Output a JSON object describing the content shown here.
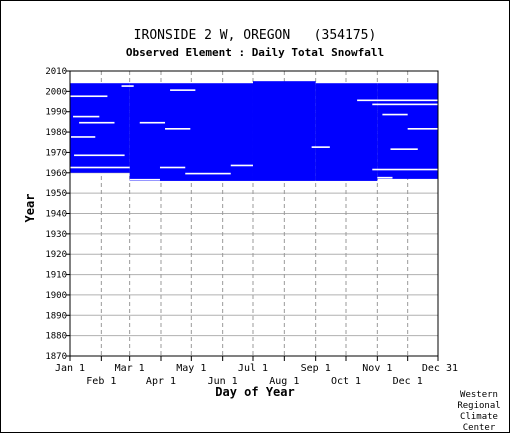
{
  "chart_data": {
    "type": "heatmap",
    "title": "IRONSIDE 2 W, OREGON   (354175)",
    "subtitle": "Observed Element : Daily Total Snowfall",
    "xlabel": "Day of Year",
    "ylabel": "Year",
    "ylim": [
      1870,
      2010
    ],
    "yticks": [
      1870,
      1880,
      1890,
      1900,
      1910,
      1920,
      1930,
      1940,
      1950,
      1960,
      1970,
      1980,
      1990,
      2000,
      2010
    ],
    "xlim": [
      1,
      365
    ],
    "xticks_top": [
      {
        "day": 1,
        "label": "Jan 1"
      },
      {
        "day": 60,
        "label": "Mar 1"
      },
      {
        "day": 121,
        "label": "May 1"
      },
      {
        "day": 182,
        "label": "Jul 1"
      },
      {
        "day": 244,
        "label": "Sep 1"
      },
      {
        "day": 305,
        "label": "Nov 1"
      },
      {
        "day": 365,
        "label": "Dec 31"
      }
    ],
    "xticks_bottom": [
      {
        "day": 32,
        "label": "Feb 1"
      },
      {
        "day": 91,
        "label": "Apr 1"
      },
      {
        "day": 152,
        "label": "Jun 1"
      },
      {
        "day": 213,
        "label": "Aug 1"
      },
      {
        "day": 274,
        "label": "Oct 1"
      },
      {
        "day": 335,
        "label": "Dec 1"
      }
    ],
    "grid": true,
    "data_color": "#0000ff",
    "coverage": [
      {
        "day_start": 1,
        "day_end": 60,
        "year_start": 1960,
        "year_end": 2003
      },
      {
        "day_start": 60,
        "day_end": 182,
        "year_start": 1956,
        "year_end": 2003
      },
      {
        "day_start": 182,
        "day_end": 244,
        "year_start": 1956,
        "year_end": 2004
      },
      {
        "day_start": 244,
        "day_end": 305,
        "year_start": 1956,
        "year_end": 2003
      },
      {
        "day_start": 305,
        "day_end": 365,
        "year_start": 1957,
        "year_end": 2003
      }
    ],
    "gaps": [
      {
        "day_start": 1,
        "day_end": 38,
        "year": 1997
      },
      {
        "day_start": 4,
        "day_end": 30,
        "year": 1987
      },
      {
        "day_start": 10,
        "day_end": 45,
        "year": 1984
      },
      {
        "day_start": 2,
        "day_end": 26,
        "year": 1977
      },
      {
        "day_start": 1,
        "day_end": 60,
        "year": 1962
      },
      {
        "day_start": 5,
        "day_end": 55,
        "year": 1968
      },
      {
        "day_start": 70,
        "day_end": 95,
        "year": 1984
      },
      {
        "day_start": 100,
        "day_end": 125,
        "year": 2000
      },
      {
        "day_start": 95,
        "day_end": 120,
        "year": 1981
      },
      {
        "day_start": 90,
        "day_end": 115,
        "year": 1962
      },
      {
        "day_start": 115,
        "day_end": 160,
        "year": 1959
      },
      {
        "day_start": 160,
        "day_end": 182,
        "year": 1963
      },
      {
        "day_start": 285,
        "day_end": 365,
        "year": 1995
      },
      {
        "day_start": 300,
        "day_end": 365,
        "year": 1993
      },
      {
        "day_start": 310,
        "day_end": 335,
        "year": 1988
      },
      {
        "day_start": 335,
        "day_end": 365,
        "year": 1981
      },
      {
        "day_start": 318,
        "day_end": 345,
        "year": 1971
      },
      {
        "day_start": 300,
        "day_end": 365,
        "year": 1961
      },
      {
        "day_start": 305,
        "day_end": 320,
        "year": 1957
      },
      {
        "day_start": 52,
        "day_end": 64,
        "year": 2002
      },
      {
        "day_start": 60,
        "day_end": 90,
        "year": 1956
      },
      {
        "day_start": 240,
        "day_end": 258,
        "year": 1972
      }
    ]
  },
  "credit": [
    "Western",
    "Regional",
    "Climate",
    "Center"
  ]
}
